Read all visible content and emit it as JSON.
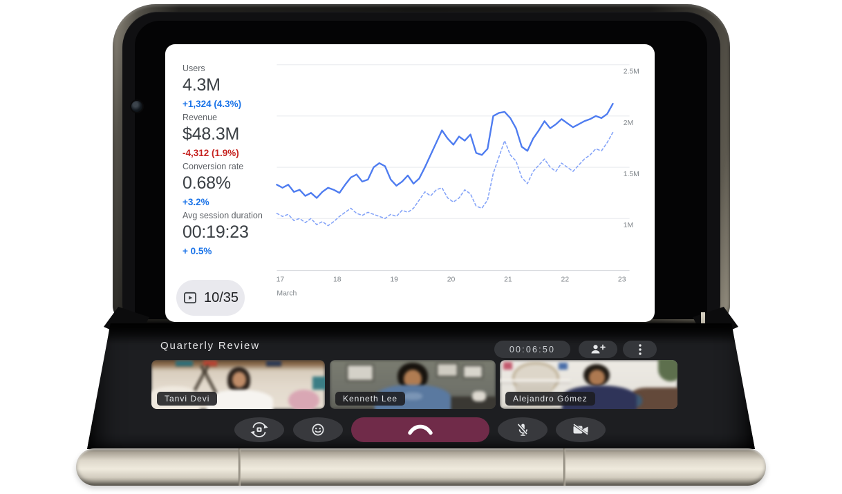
{
  "device": {
    "type": "foldable-phone-open-tabletop"
  },
  "slide": {
    "stats": [
      {
        "label": "Users",
        "value": "4.3M",
        "delta": "+1,324 (4.3%)",
        "trend": "up"
      },
      {
        "label": "Revenue",
        "value": "$48.3M",
        "delta": "-4,312 (1.9%)",
        "trend": "down"
      },
      {
        "label": "Conversion rate",
        "value": "0.68%",
        "delta": "+3.2%",
        "trend": "up"
      },
      {
        "label": "Avg session duration",
        "value": "00:19:23",
        "delta": "+ 0.5%",
        "trend": "up"
      }
    ],
    "slide_counter": "10/35",
    "slide_counter_icon": "slideshow-play-icon"
  },
  "chart_data": {
    "type": "line",
    "title": "",
    "xlabel": "March",
    "ylabel": "",
    "grid": true,
    "legend": "none",
    "xlim": [
      17,
      23.2
    ],
    "ylim": [
      0.5,
      2.55
    ],
    "x_ticks": [
      {
        "x": 17,
        "label": "17"
      },
      {
        "x": 18,
        "label": "18"
      },
      {
        "x": 19,
        "label": "19"
      },
      {
        "x": 20,
        "label": "20"
      },
      {
        "x": 21,
        "label": "21"
      },
      {
        "x": 22,
        "label": "22"
      },
      {
        "x": 23,
        "label": "23"
      }
    ],
    "y_grid": [
      {
        "v": 2.5,
        "label": "2.5M"
      },
      {
        "v": 2.0,
        "label": "2M"
      },
      {
        "v": 1.5,
        "label": "1.5M"
      },
      {
        "v": 1.0,
        "label": "1M"
      }
    ],
    "series": [
      {
        "name": "current-period-users",
        "style": "solid",
        "color": "#4e7cf0",
        "points": [
          [
            17.0,
            1.33
          ],
          [
            17.1,
            1.3
          ],
          [
            17.2,
            1.33
          ],
          [
            17.3,
            1.26
          ],
          [
            17.4,
            1.28
          ],
          [
            17.5,
            1.22
          ],
          [
            17.6,
            1.25
          ],
          [
            17.7,
            1.2
          ],
          [
            17.8,
            1.26
          ],
          [
            17.9,
            1.3
          ],
          [
            18.0,
            1.28
          ],
          [
            18.1,
            1.25
          ],
          [
            18.2,
            1.33
          ],
          [
            18.3,
            1.4
          ],
          [
            18.4,
            1.43
          ],
          [
            18.5,
            1.36
          ],
          [
            18.6,
            1.38
          ],
          [
            18.7,
            1.5
          ],
          [
            18.8,
            1.54
          ],
          [
            18.9,
            1.51
          ],
          [
            19.0,
            1.38
          ],
          [
            19.1,
            1.32
          ],
          [
            19.2,
            1.36
          ],
          [
            19.3,
            1.42
          ],
          [
            19.4,
            1.34
          ],
          [
            19.5,
            1.39
          ],
          [
            19.6,
            1.5
          ],
          [
            19.7,
            1.62
          ],
          [
            19.8,
            1.74
          ],
          [
            19.9,
            1.86
          ],
          [
            20.0,
            1.78
          ],
          [
            20.1,
            1.72
          ],
          [
            20.2,
            1.8
          ],
          [
            20.3,
            1.76
          ],
          [
            20.4,
            1.82
          ],
          [
            20.5,
            1.64
          ],
          [
            20.6,
            1.62
          ],
          [
            20.7,
            1.68
          ],
          [
            20.8,
            2.0
          ],
          [
            20.9,
            2.03
          ],
          [
            21.0,
            2.04
          ],
          [
            21.1,
            1.98
          ],
          [
            21.2,
            1.88
          ],
          [
            21.3,
            1.7
          ],
          [
            21.4,
            1.66
          ],
          [
            21.5,
            1.78
          ],
          [
            21.6,
            1.86
          ],
          [
            21.7,
            1.95
          ],
          [
            21.8,
            1.88
          ],
          [
            21.9,
            1.92
          ],
          [
            22.0,
            1.97
          ],
          [
            22.1,
            1.93
          ],
          [
            22.2,
            1.89
          ],
          [
            22.3,
            1.92
          ],
          [
            22.4,
            1.95
          ],
          [
            22.5,
            1.97
          ],
          [
            22.6,
            2.0
          ],
          [
            22.7,
            1.98
          ],
          [
            22.8,
            2.02
          ],
          [
            22.9,
            2.12
          ]
        ]
      },
      {
        "name": "previous-period-users",
        "style": "dashed",
        "color": "#85a4f8",
        "points": [
          [
            17.0,
            1.05
          ],
          [
            17.1,
            1.02
          ],
          [
            17.2,
            1.04
          ],
          [
            17.3,
            0.98
          ],
          [
            17.4,
            1.0
          ],
          [
            17.5,
            0.96
          ],
          [
            17.6,
            1.0
          ],
          [
            17.7,
            0.94
          ],
          [
            17.8,
            0.97
          ],
          [
            17.9,
            0.93
          ],
          [
            18.0,
            0.97
          ],
          [
            18.1,
            1.02
          ],
          [
            18.2,
            1.06
          ],
          [
            18.3,
            1.1
          ],
          [
            18.4,
            1.05
          ],
          [
            18.5,
            1.03
          ],
          [
            18.6,
            1.06
          ],
          [
            18.7,
            1.04
          ],
          [
            18.8,
            1.02
          ],
          [
            18.9,
            1.0
          ],
          [
            19.0,
            1.04
          ],
          [
            19.1,
            1.02
          ],
          [
            19.2,
            1.08
          ],
          [
            19.3,
            1.06
          ],
          [
            19.4,
            1.1
          ],
          [
            19.5,
            1.18
          ],
          [
            19.6,
            1.26
          ],
          [
            19.7,
            1.22
          ],
          [
            19.8,
            1.28
          ],
          [
            19.9,
            1.3
          ],
          [
            20.0,
            1.2
          ],
          [
            20.1,
            1.16
          ],
          [
            20.2,
            1.2
          ],
          [
            20.3,
            1.28
          ],
          [
            20.4,
            1.24
          ],
          [
            20.5,
            1.12
          ],
          [
            20.6,
            1.1
          ],
          [
            20.7,
            1.18
          ],
          [
            20.8,
            1.44
          ],
          [
            20.9,
            1.6
          ],
          [
            21.0,
            1.76
          ],
          [
            21.1,
            1.62
          ],
          [
            21.2,
            1.56
          ],
          [
            21.3,
            1.4
          ],
          [
            21.4,
            1.34
          ],
          [
            21.5,
            1.46
          ],
          [
            21.6,
            1.52
          ],
          [
            21.7,
            1.58
          ],
          [
            21.8,
            1.5
          ],
          [
            21.9,
            1.46
          ],
          [
            22.0,
            1.54
          ],
          [
            22.1,
            1.5
          ],
          [
            22.2,
            1.46
          ],
          [
            22.3,
            1.52
          ],
          [
            22.4,
            1.58
          ],
          [
            22.5,
            1.62
          ],
          [
            22.6,
            1.68
          ],
          [
            22.7,
            1.66
          ],
          [
            22.8,
            1.74
          ],
          [
            22.9,
            1.84
          ]
        ]
      }
    ]
  },
  "call": {
    "title": "Quarterly Review",
    "elapsed": "00:06:50",
    "participants": [
      {
        "name": "Tanvi Devi"
      },
      {
        "name": "Kenneth Lee"
      },
      {
        "name": "Alejandro Gómez"
      }
    ],
    "header_icons": [
      "person-add-icon",
      "more-vert-icon"
    ],
    "control_icons": [
      "switch-camera-icon",
      "emoji-reactions-icon",
      "end-call-icon",
      "mic-off-icon",
      "videocam-off-icon"
    ]
  },
  "colors": {
    "delta_up": "#1a73e8",
    "delta_down": "#c5221f",
    "stat_value": "#3b4045",
    "stat_label": "#5f6368",
    "line_solid": "#4e7cf0",
    "line_dashed": "#85a4f8",
    "end_call_bg": "#702b49",
    "control_bg": "#38393d",
    "call_screen_bg": "#1d1e21"
  }
}
